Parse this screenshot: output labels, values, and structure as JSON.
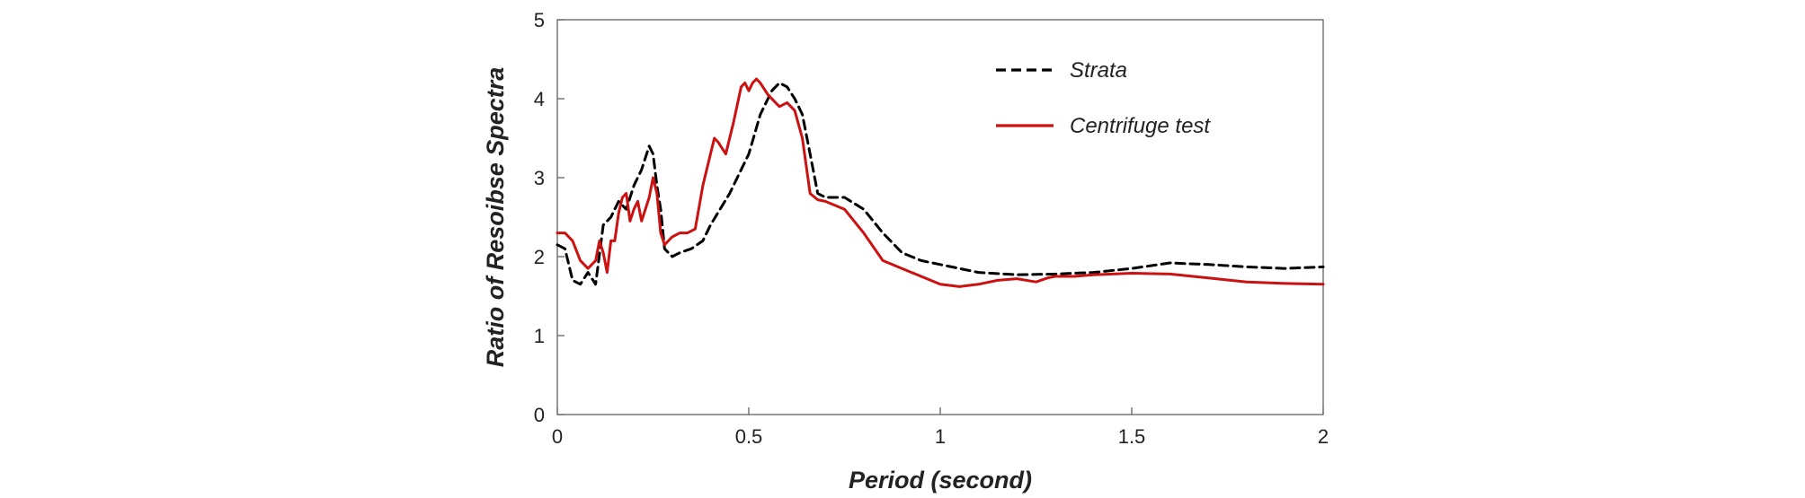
{
  "chart_data": {
    "type": "line",
    "title": "",
    "xlabel": "Period (second)",
    "ylabel": "Ratio of Resoibse Spectra",
    "xlim": [
      0,
      2
    ],
    "ylim": [
      0,
      5
    ],
    "x_ticks": [
      0,
      0.5,
      1,
      1.5,
      2
    ],
    "x_tick_labels": [
      "0",
      "0.5",
      "1",
      "1.5",
      "2"
    ],
    "y_ticks": [
      0,
      1,
      2,
      3,
      4,
      5
    ],
    "y_tick_labels": [
      "0",
      "1",
      "2",
      "3",
      "4",
      "5"
    ],
    "grid": false,
    "legend_position": "top-right",
    "series": [
      {
        "name": "Strata",
        "color": "#000000",
        "style": "dashed",
        "x": [
          0.0,
          0.02,
          0.04,
          0.06,
          0.08,
          0.1,
          0.12,
          0.14,
          0.16,
          0.18,
          0.2,
          0.22,
          0.24,
          0.25,
          0.26,
          0.27,
          0.28,
          0.3,
          0.32,
          0.35,
          0.38,
          0.4,
          0.45,
          0.5,
          0.53,
          0.56,
          0.58,
          0.6,
          0.62,
          0.64,
          0.66,
          0.68,
          0.7,
          0.75,
          0.8,
          0.85,
          0.9,
          0.95,
          1.0,
          1.1,
          1.2,
          1.3,
          1.4,
          1.5,
          1.6,
          1.7,
          1.8,
          1.9,
          2.0
        ],
        "y": [
          2.15,
          2.1,
          1.7,
          1.65,
          1.8,
          1.65,
          2.4,
          2.5,
          2.7,
          2.6,
          2.9,
          3.1,
          3.4,
          3.3,
          2.9,
          2.6,
          2.1,
          2.0,
          2.05,
          2.1,
          2.2,
          2.4,
          2.8,
          3.3,
          3.8,
          4.1,
          4.2,
          4.15,
          4.0,
          3.8,
          3.3,
          2.8,
          2.75,
          2.75,
          2.6,
          2.3,
          2.05,
          1.95,
          1.9,
          1.8,
          1.77,
          1.78,
          1.8,
          1.85,
          1.92,
          1.9,
          1.87,
          1.85,
          1.87
        ]
      },
      {
        "name": "Centrifuge test",
        "color": "#cc1111",
        "style": "solid",
        "x": [
          0.0,
          0.02,
          0.04,
          0.06,
          0.08,
          0.1,
          0.11,
          0.12,
          0.13,
          0.14,
          0.15,
          0.16,
          0.17,
          0.18,
          0.19,
          0.2,
          0.21,
          0.22,
          0.23,
          0.24,
          0.25,
          0.26,
          0.27,
          0.28,
          0.29,
          0.3,
          0.32,
          0.34,
          0.36,
          0.38,
          0.4,
          0.41,
          0.42,
          0.44,
          0.46,
          0.48,
          0.49,
          0.5,
          0.51,
          0.52,
          0.53,
          0.55,
          0.57,
          0.58,
          0.6,
          0.62,
          0.64,
          0.66,
          0.68,
          0.7,
          0.75,
          0.8,
          0.85,
          0.9,
          0.95,
          1.0,
          1.05,
          1.1,
          1.15,
          1.2,
          1.25,
          1.28,
          1.3,
          1.35,
          1.4,
          1.5,
          1.6,
          1.7,
          1.8,
          1.9,
          2.0
        ],
        "y": [
          2.3,
          2.3,
          2.2,
          1.95,
          1.85,
          1.95,
          2.2,
          2.05,
          1.8,
          2.2,
          2.2,
          2.55,
          2.75,
          2.8,
          2.45,
          2.6,
          2.7,
          2.45,
          2.6,
          2.75,
          3.0,
          2.8,
          2.3,
          2.15,
          2.2,
          2.25,
          2.3,
          2.3,
          2.35,
          2.9,
          3.3,
          3.5,
          3.45,
          3.3,
          3.7,
          4.15,
          4.2,
          4.1,
          4.2,
          4.25,
          4.2,
          4.05,
          3.95,
          3.9,
          3.95,
          3.85,
          3.5,
          2.8,
          2.72,
          2.7,
          2.6,
          2.3,
          1.95,
          1.85,
          1.75,
          1.65,
          1.62,
          1.65,
          1.7,
          1.72,
          1.68,
          1.73,
          1.75,
          1.75,
          1.77,
          1.79,
          1.78,
          1.73,
          1.68,
          1.66,
          1.65
        ]
      }
    ]
  }
}
